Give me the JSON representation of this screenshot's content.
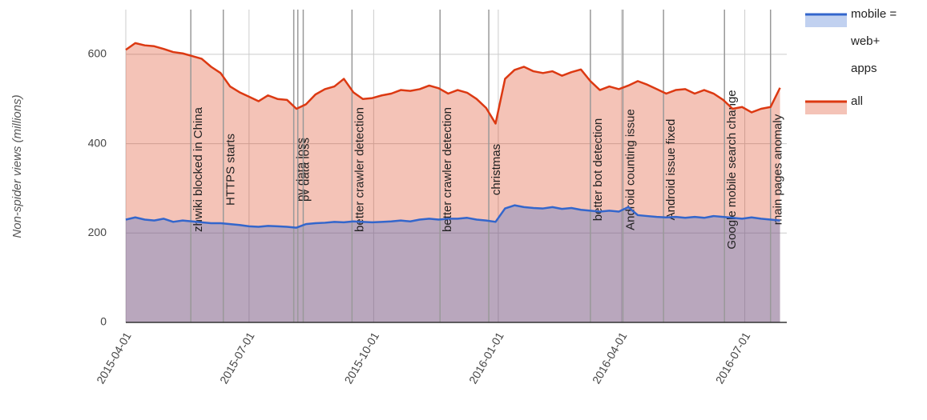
{
  "chart_data": {
    "type": "area",
    "y_label": "Non-spider views (millions)",
    "x": [
      "2015-04-01",
      "2015-04-08",
      "2015-04-15",
      "2015-04-22",
      "2015-04-29",
      "2015-05-06",
      "2015-05-13",
      "2015-05-20",
      "2015-05-27",
      "2015-06-03",
      "2015-06-10",
      "2015-06-17",
      "2015-06-24",
      "2015-07-01",
      "2015-07-08",
      "2015-07-15",
      "2015-07-22",
      "2015-07-29",
      "2015-08-05",
      "2015-08-12",
      "2015-08-19",
      "2015-08-26",
      "2015-09-02",
      "2015-09-09",
      "2015-09-16",
      "2015-09-23",
      "2015-09-30",
      "2015-10-07",
      "2015-10-14",
      "2015-10-21",
      "2015-10-28",
      "2015-11-04",
      "2015-11-11",
      "2015-11-18",
      "2015-11-25",
      "2015-12-02",
      "2015-12-09",
      "2015-12-16",
      "2015-12-23",
      "2015-12-30",
      "2016-01-06",
      "2016-01-13",
      "2016-01-20",
      "2016-01-27",
      "2016-02-03",
      "2016-02-10",
      "2016-02-17",
      "2016-02-24",
      "2016-03-02",
      "2016-03-09",
      "2016-03-16",
      "2016-03-23",
      "2016-03-30",
      "2016-04-06",
      "2016-04-13",
      "2016-04-20",
      "2016-04-27",
      "2016-05-04",
      "2016-05-11",
      "2016-05-18",
      "2016-05-25",
      "2016-06-01",
      "2016-06-08",
      "2016-06-15",
      "2016-06-22",
      "2016-06-29",
      "2016-07-06",
      "2016-07-13",
      "2016-07-20",
      "2016-07-27"
    ],
    "series": [
      {
        "name": "mobile = web+ apps",
        "color": "#3366cc",
        "values": [
          230,
          235,
          230,
          228,
          232,
          225,
          228,
          226,
          224,
          222,
          222,
          220,
          218,
          215,
          214,
          216,
          215,
          214,
          212,
          220,
          222,
          223,
          225,
          224,
          226,
          225,
          224,
          225,
          226,
          228,
          226,
          230,
          232,
          230,
          232,
          232,
          234,
          230,
          228,
          225,
          255,
          262,
          258,
          256,
          255,
          258,
          254,
          256,
          252,
          250,
          248,
          250,
          248,
          258,
          240,
          238,
          236,
          235,
          236,
          234,
          236,
          234,
          238,
          236,
          234,
          232,
          235,
          232,
          230,
          228
        ]
      },
      {
        "name": "all",
        "color": "#dc3912",
        "values": [
          610,
          625,
          620,
          618,
          612,
          605,
          602,
          596,
          590,
          572,
          558,
          528,
          515,
          505,
          495,
          508,
          500,
          498,
          478,
          488,
          510,
          522,
          528,
          545,
          515,
          500,
          502,
          508,
          512,
          520,
          518,
          522,
          530,
          524,
          512,
          520,
          514,
          500,
          480,
          445,
          545,
          565,
          572,
          562,
          558,
          562,
          552,
          560,
          566,
          540,
          520,
          528,
          522,
          530,
          540,
          532,
          522,
          512,
          520,
          522,
          512,
          520,
          512,
          498,
          478,
          482,
          470,
          478,
          482,
          525
        ]
      }
    ],
    "xlim": [
      "2015-04-01",
      "2016-08-01"
    ],
    "xticks": [
      "2015-04-01",
      "2015-07-01",
      "2015-10-01",
      "2016-01-01",
      "2016-04-01",
      "2016-07-01"
    ],
    "ylim": [
      0,
      700
    ],
    "yticks": [
      0,
      200,
      400,
      600
    ],
    "grid": true,
    "legend": "right",
    "annotations": [
      {
        "x": "2015-05-19",
        "label": "zhwiki blocked in China"
      },
      {
        "x": "2015-06-12",
        "label": "HTTPS starts"
      },
      {
        "x": "2015-08-03",
        "label": "pv data loss"
      },
      {
        "x": "2015-08-06",
        "label": "pv data loss"
      },
      {
        "x": "2015-08-10"
      },
      {
        "x": "2015-09-15",
        "label": "better crawler detection"
      },
      {
        "x": "2015-11-19",
        "label": "better crawler detection"
      },
      {
        "x": "2015-12-25",
        "label": "christmas"
      },
      {
        "x": "2016-03-09",
        "label": "better bot detection"
      },
      {
        "x": "2016-04-02",
        "label": "Android counting issue"
      },
      {
        "x": "2016-05-02",
        "label": "Android issue fixed"
      },
      {
        "x": "2016-06-16",
        "label": "Google mobile search change"
      },
      {
        "x": "2016-07-20",
        "label": "main pages anomaly"
      }
    ]
  }
}
